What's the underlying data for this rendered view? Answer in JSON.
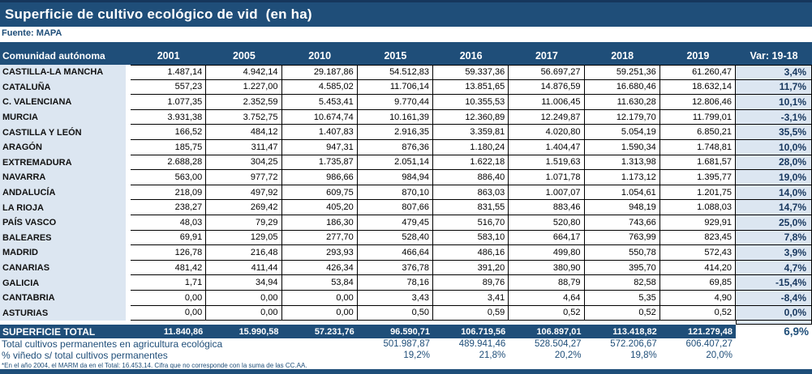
{
  "title": "Superficie de cultivo ecológico de vid  (en ha)",
  "source": "Fuente: MAPA",
  "footnote": "*En el año 2004, el MARM da en el Total: 16.453,14. Cifra que no corresponde con la suma de las CC.AA.",
  "colors": {
    "navy": "#1f4e79",
    "navy_dark": "#16365c",
    "light_blue": "#dce6f1"
  },
  "table": {
    "columns": [
      "Comunidad autónoma",
      "2001",
      "2005",
      "2010",
      "2015",
      "2016",
      "2017",
      "2018",
      "2019",
      "Var: 19-18"
    ],
    "rows": [
      {
        "name": "CASTILLA-LA MANCHA",
        "values": [
          "1.487,14",
          "4.942,14",
          "29.187,86",
          "54.512,83",
          "59.337,36",
          "56.697,27",
          "59.251,36",
          "61.260,47"
        ],
        "var": "3,4%"
      },
      {
        "name": "CATALUÑA",
        "values": [
          "557,23",
          "1.227,00",
          "4.585,02",
          "11.706,14",
          "13.851,65",
          "14.876,59",
          "16.680,46",
          "18.632,14"
        ],
        "var": "11,7%"
      },
      {
        "name": "C. VALENCIANA",
        "values": [
          "1.077,35",
          "2.352,59",
          "5.453,41",
          "9.770,44",
          "10.355,53",
          "11.006,45",
          "11.630,28",
          "12.806,46"
        ],
        "var": "10,1%"
      },
      {
        "name": "MURCIA",
        "values": [
          "3.931,38",
          "3.752,75",
          "10.674,74",
          "10.161,39",
          "12.360,89",
          "12.249,87",
          "12.179,70",
          "11.799,01"
        ],
        "var": "-3,1%"
      },
      {
        "name": "CASTILLA Y LEÓN",
        "values": [
          "166,52",
          "484,12",
          "1.407,83",
          "2.916,35",
          "3.359,81",
          "4.020,80",
          "5.054,19",
          "6.850,21"
        ],
        "var": "35,5%"
      },
      {
        "name": "ARAGÓN",
        "values": [
          "185,75",
          "311,47",
          "947,31",
          "876,36",
          "1.180,24",
          "1.404,47",
          "1.590,34",
          "1.748,81"
        ],
        "var": "10,0%"
      },
      {
        "name": "EXTREMADURA",
        "values": [
          "2.688,28",
          "304,25",
          "1.735,87",
          "2.051,14",
          "1.622,18",
          "1.519,63",
          "1.313,98",
          "1.681,57"
        ],
        "var": "28,0%"
      },
      {
        "name": "NAVARRA",
        "values": [
          "563,00",
          "977,72",
          "986,66",
          "984,94",
          "886,40",
          "1.071,78",
          "1.173,12",
          "1.395,77"
        ],
        "var": "19,0%"
      },
      {
        "name": "ANDALUCÍA",
        "values": [
          "218,09",
          "497,92",
          "609,75",
          "870,10",
          "863,03",
          "1.007,07",
          "1.054,61",
          "1.201,75"
        ],
        "var": "14,0%"
      },
      {
        "name": "LA RIOJA",
        "values": [
          "238,27",
          "269,42",
          "405,20",
          "807,66",
          "831,55",
          "883,46",
          "948,19",
          "1.088,03"
        ],
        "var": "14,7%"
      },
      {
        "name": "PAÍS VASCO",
        "values": [
          "48,03",
          "79,29",
          "186,30",
          "479,45",
          "516,70",
          "520,80",
          "743,66",
          "929,91"
        ],
        "var": "25,0%"
      },
      {
        "name": "BALEARES",
        "values": [
          "69,91",
          "129,05",
          "277,70",
          "528,40",
          "583,10",
          "664,17",
          "763,99",
          "823,45"
        ],
        "var": "7,8%"
      },
      {
        "name": "MADRID",
        "values": [
          "126,78",
          "216,48",
          "293,93",
          "466,64",
          "486,16",
          "499,80",
          "550,78",
          "572,43"
        ],
        "var": "3,9%"
      },
      {
        "name": "CANARIAS",
        "values": [
          "481,42",
          "411,44",
          "426,34",
          "376,78",
          "391,20",
          "380,90",
          "395,70",
          "414,20"
        ],
        "var": "4,7%"
      },
      {
        "name": "GALICIA",
        "values": [
          "1,71",
          "34,94",
          "53,84",
          "78,16",
          "89,76",
          "88,79",
          "82,58",
          "69,85"
        ],
        "var": "-15,4%"
      },
      {
        "name": "CANTABRIA",
        "values": [
          "0,00",
          "0,00",
          "0,00",
          "3,43",
          "3,41",
          "4,64",
          "5,35",
          "4,90"
        ],
        "var": "-8,4%"
      },
      {
        "name": "ASTURIAS",
        "values": [
          "0,00",
          "0,00",
          "0,00",
          "0,50",
          "0,59",
          "0,52",
          "0,52",
          "0,52"
        ],
        "var": "0,0%"
      }
    ],
    "total": {
      "label": "SUPERFICIE TOTAL",
      "values": [
        "11.840,86",
        "15.990,58",
        "57.231,76",
        "96.590,71",
        "106.719,56",
        "106.897,01",
        "113.418,82",
        "121.279,48"
      ],
      "var": "6,9%"
    },
    "permanentes": {
      "label": "Total cultivos permanentes en agricultura ecológica",
      "values": [
        "",
        "",
        "",
        "501.987,87",
        "489.941,46",
        "528.504,27",
        "572.206,67",
        "606.407,27"
      ]
    },
    "pct": {
      "label": "% viñedo s/ total cultivos permanentes",
      "values": [
        "",
        "",
        "",
        "19,2%",
        "21,8%",
        "20,2%",
        "19,8%",
        "20,0%"
      ]
    }
  }
}
